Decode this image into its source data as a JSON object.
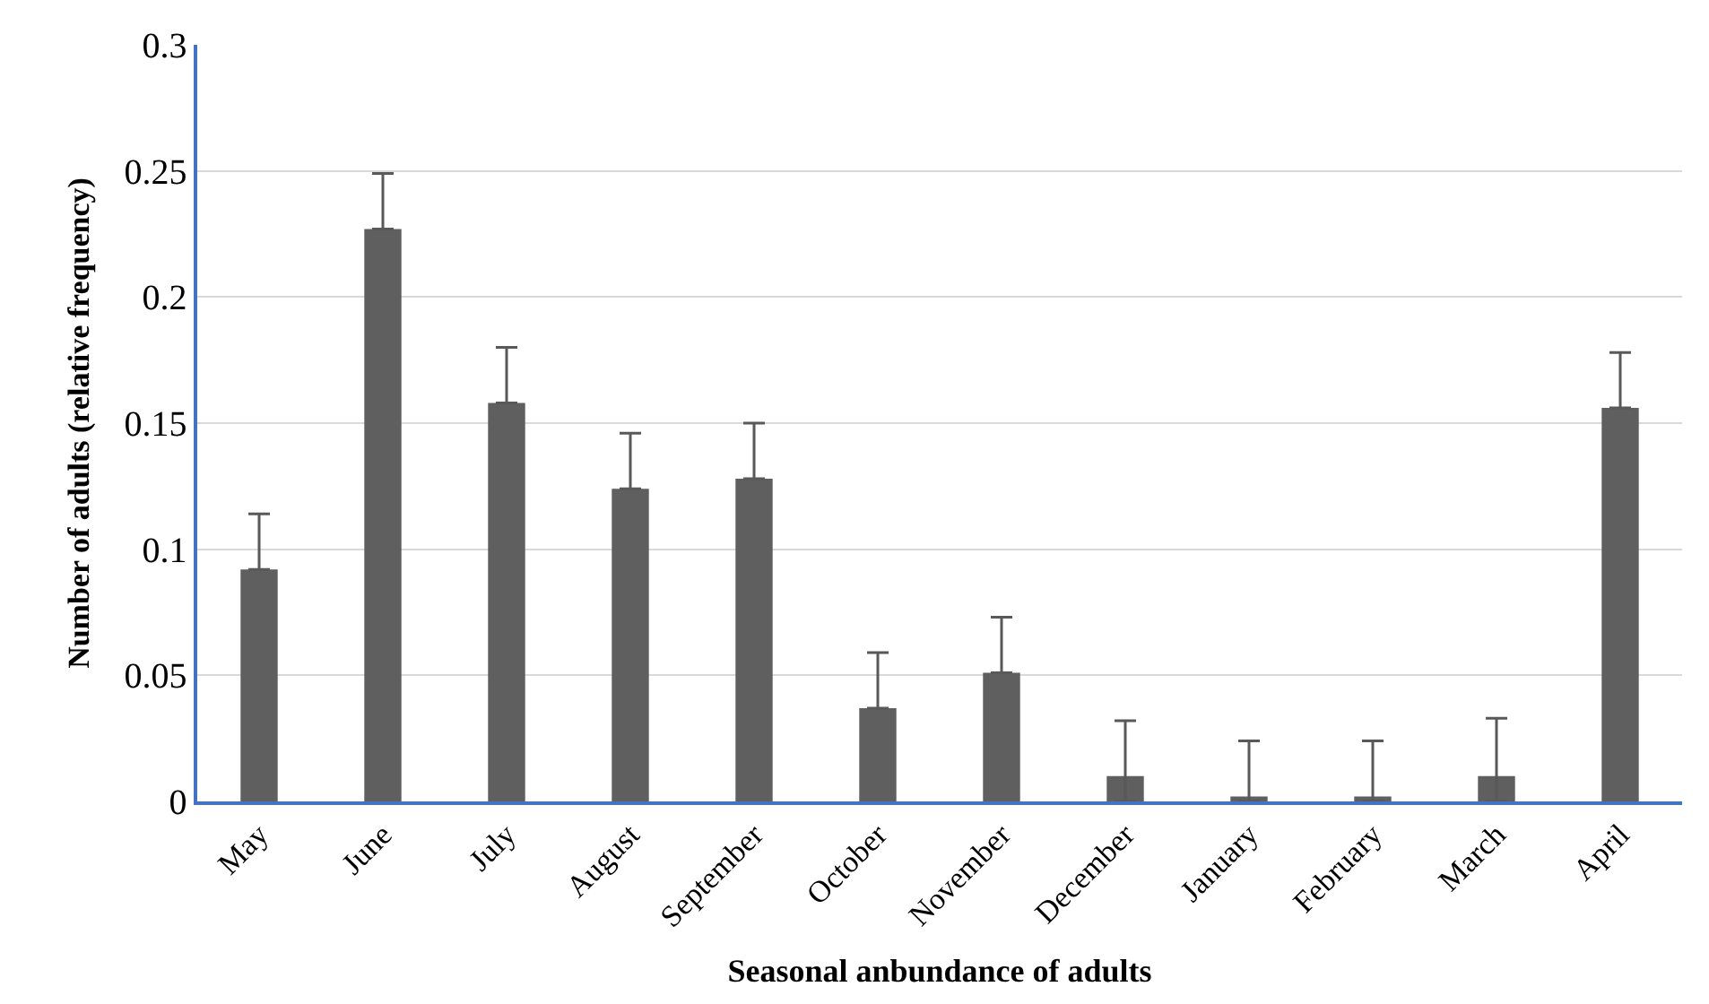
{
  "chart_data": {
    "type": "bar",
    "xlabel": "Seasonal anbundance of adults",
    "ylabel": "Number of adults (relative frequency)",
    "categories": [
      "May",
      "June",
      "July",
      "August",
      "September",
      "October",
      "November",
      "December",
      "January",
      "February",
      "March",
      "April"
    ],
    "values": [
      0.092,
      0.227,
      0.158,
      0.124,
      0.128,
      0.037,
      0.051,
      0.01,
      0.002,
      0.002,
      0.01,
      0.156
    ],
    "errors": [
      [
        0.092,
        0.114
      ],
      [
        0.227,
        0.249
      ],
      [
        0.158,
        0.18
      ],
      [
        0.124,
        0.146
      ],
      [
        0.128,
        0.15
      ],
      [
        0.037,
        0.059
      ],
      [
        0.051,
        0.073
      ],
      [
        0,
        0.032
      ],
      [
        0,
        0.024
      ],
      [
        0,
        0.024
      ],
      [
        0,
        0.033
      ],
      [
        0.156,
        0.178
      ]
    ],
    "color": "#5f5f5f",
    "ylim": [
      0,
      0.3
    ],
    "yticks": [
      0,
      0.05,
      0.1,
      0.15,
      0.2,
      0.25,
      0.3
    ],
    "grid": "y"
  }
}
